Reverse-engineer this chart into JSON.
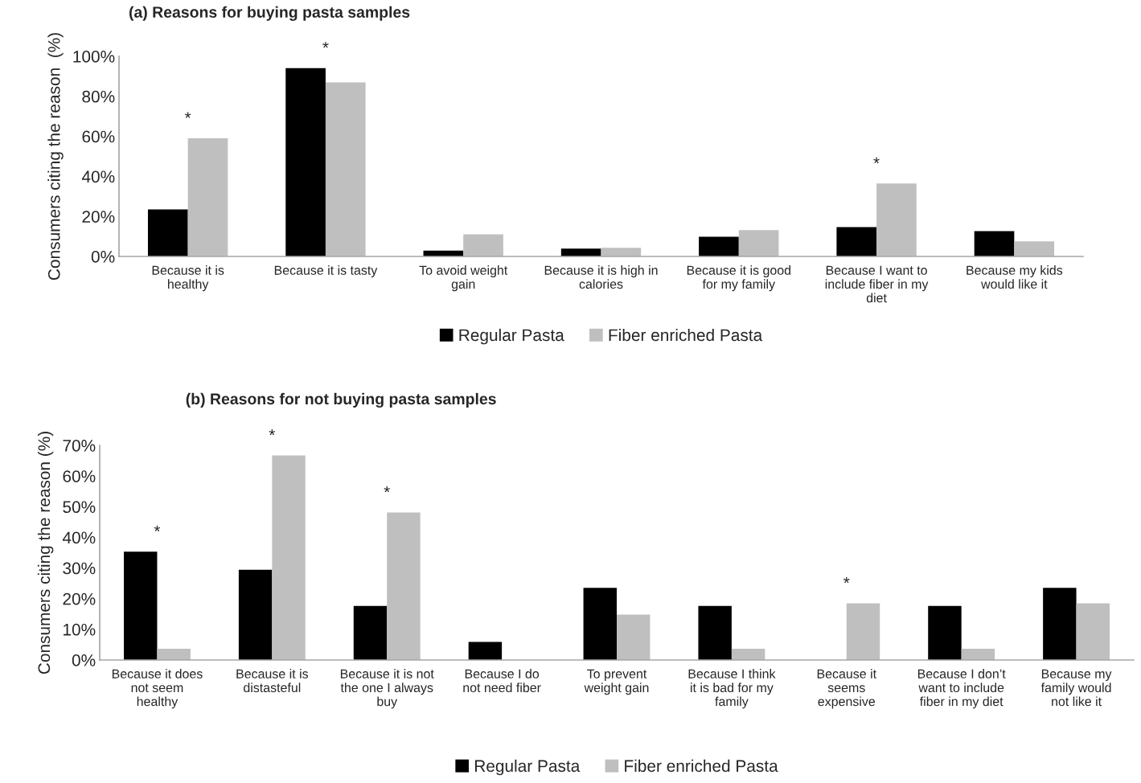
{
  "chart_data": [
    {
      "type": "bar",
      "title": "(a) Reasons for buying pasta samples",
      "ylabel": "Consumers citing the reason  (%)",
      "categories": [
        "Because it is\nhealthy",
        "Because it is tasty",
        "To avoid weight\ngain",
        "Because it is high in\ncalories",
        "Because it is good\nfor my family",
        "Because I want to\ninclude fiber in my\ndiet",
        "Because my kids\nwould like it"
      ],
      "series": [
        {
          "name": "Regular Pasta",
          "color": "#000000",
          "values": [
            23.5,
            94.1,
            2.9,
            3.9,
            9.8,
            14.7,
            12.7
          ]
        },
        {
          "name": "Fiber enriched Pasta",
          "color": "#bfbfbf",
          "values": [
            59.0,
            86.9,
            11.0,
            4.3,
            13.2,
            36.4,
            7.5
          ]
        }
      ],
      "ylim": [
        0,
        100
      ],
      "yticks": [
        {
          "value": 0,
          "label": "0%"
        },
        {
          "value": 20,
          "label": "20%"
        },
        {
          "value": 40,
          "label": "40%"
        },
        {
          "value": 60,
          "label": "60%"
        },
        {
          "value": 80,
          "label": "80%"
        },
        {
          "value": 100,
          "label": "100%"
        }
      ],
      "annotations": [
        {
          "text": "*",
          "x": "Because it is\nhealthy",
          "y": 59.0
        },
        {
          "text": "*",
          "x": "Because it is tasty",
          "y": 94.1
        },
        {
          "text": "*",
          "x": "Because I want to\ninclude fiber in my\ndiet",
          "y": 36.4
        }
      ],
      "legend": "bottom",
      "grid": false
    },
    {
      "type": "bar",
      "title": "(b) Reasons for not buying pasta samples",
      "ylabel": "Consumers citing the reason (%)",
      "categories": [
        "Because it does\nnot seem\nhealthy",
        "Because it is\ndistasteful",
        "Because it is not\nthe one I always\nbuy",
        "Because I do\nnot need fiber",
        "To prevent\nweight gain",
        "Because I think\nit is bad for my\nfamily",
        "Because it\nseems\nexpensive",
        "Because I don’t\nwant to include\nfiber in my diet",
        "Because my\nfamily would\nnot like it"
      ],
      "series": [
        {
          "name": "Regular Pasta",
          "color": "#000000",
          "values": [
            35.3,
            29.4,
            17.6,
            5.9,
            23.5,
            17.6,
            0,
            17.6,
            23.5
          ]
        },
        {
          "name": "Fiber enriched Pasta",
          "color": "#bfbfbf",
          "values": [
            3.7,
            66.7,
            48.1,
            0,
            14.8,
            3.7,
            18.5,
            3.7,
            18.5
          ]
        }
      ],
      "ylim": [
        0,
        70
      ],
      "yticks": [
        {
          "value": 0,
          "label": "0%"
        },
        {
          "value": 10,
          "label": "10%"
        },
        {
          "value": 20,
          "label": "20%"
        },
        {
          "value": 30,
          "label": "30%"
        },
        {
          "value": 40,
          "label": "40%"
        },
        {
          "value": 50,
          "label": "50%"
        },
        {
          "value": 60,
          "label": "60%"
        },
        {
          "value": 70,
          "label": "70%"
        }
      ],
      "annotations": [
        {
          "text": "*",
          "x": "Because it does\nnot seem\nhealthy",
          "y": 35.3
        },
        {
          "text": "*",
          "x": "Because it is\ndistasteful",
          "y": 66.7
        },
        {
          "text": "*",
          "x": "Because it is not\nthe one I always\nbuy",
          "y": 48.1
        },
        {
          "text": "*",
          "x": "Because it\nseems\nexpensive",
          "y": 18.5
        }
      ],
      "legend": "bottom",
      "grid": false
    }
  ]
}
